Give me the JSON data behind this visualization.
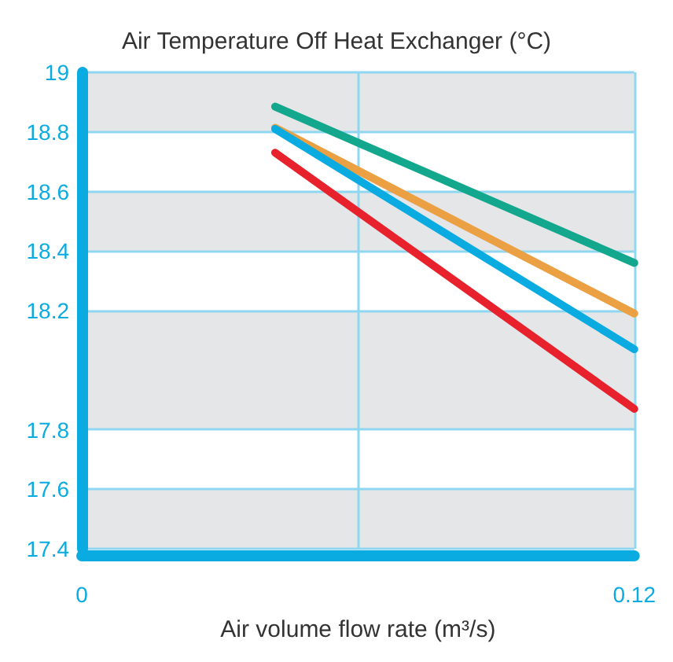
{
  "chart_data": {
    "type": "line",
    "title": "Air Temperature Off Heat Exchanger (°C)",
    "xlabel": "Air volume flow rate (m³/s)",
    "x": [
      0.042,
      0.12
    ],
    "series": [
      {
        "color": "#13a88e",
        "values": [
          18.885,
          18.36
        ]
      },
      {
        "color": "#eaa043",
        "values": [
          18.814,
          18.19
        ]
      },
      {
        "color": "#0aabe0",
        "values": [
          18.81,
          18.07
        ]
      },
      {
        "color": "#e8222d",
        "values": [
          18.73,
          17.87
        ]
      }
    ],
    "xlim": [
      0,
      0.12
    ],
    "xticks": [
      0,
      {
        "value": 0.06,
        "label": null
      },
      0.12
    ],
    "ylim": [
      17.4,
      19
    ],
    "yticks": [
      19,
      18.8,
      18.6,
      18.4,
      18.2,
      17.8,
      17.6,
      17.4
    ],
    "grid": true,
    "marker": "none",
    "line_style": "solid"
  }
}
